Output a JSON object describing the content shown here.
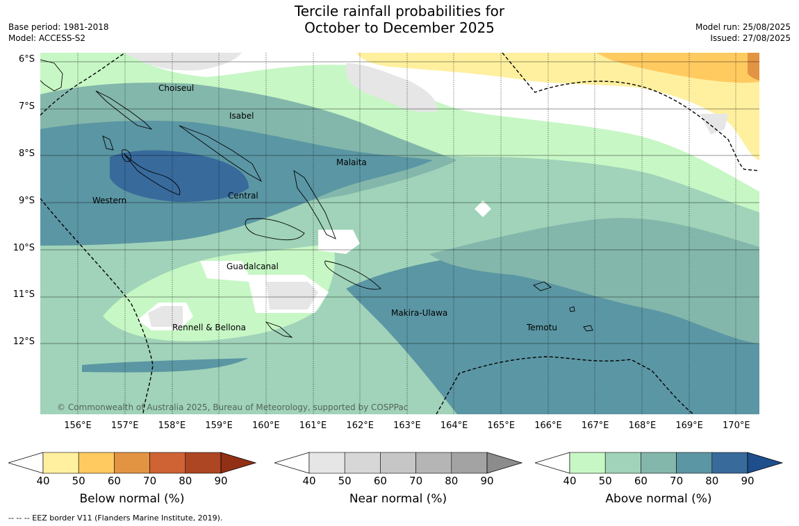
{
  "title_line1": "Tercile rainfall probabilities for",
  "title_line2": "October to December 2025",
  "meta_left": {
    "base_period": "Base period: 1981-2018",
    "model": "Model: ACCESS-S2"
  },
  "meta_right": {
    "model_run": "Model run: 25/08/2025",
    "issued": "Issued: 27/08/2025"
  },
  "lat_labels": [
    "6°S",
    "7°S",
    "8°S",
    "9°S",
    "10°S",
    "11°S",
    "12°S"
  ],
  "lon_labels": [
    "156°E",
    "157°E",
    "158°E",
    "159°E",
    "160°E",
    "161°E",
    "162°E",
    "163°E",
    "164°E",
    "165°E",
    "166°E",
    "167°E",
    "168°E",
    "169°E",
    "170°E"
  ],
  "regions": [
    "Choiseul",
    "Isabel",
    "Malaita",
    "Western",
    "Central",
    "Guadalcanal",
    "Makira-Ulawa",
    "Temotu",
    "Rennell & Bellona"
  ],
  "copyright": "© Commonwealth of Australia 2025, Bureau of Meteorology, supported by COSPPac",
  "colorbars": [
    {
      "name": "below",
      "title": "Below normal (%)",
      "ticks": [
        "40",
        "50",
        "60",
        "70",
        "80",
        "90"
      ],
      "colors": [
        "#fff09f",
        "#ffca60",
        "#e39443",
        "#cf6334",
        "#ad4623",
        "#923015"
      ]
    },
    {
      "name": "near",
      "title": "Near normal (%)",
      "ticks": [
        "40",
        "50",
        "60",
        "70",
        "80",
        "90"
      ],
      "colors": [
        "#e6e6e6",
        "#d7d7d7",
        "#c6c6c6",
        "#b5b5b5",
        "#a3a3a3",
        "#8c8c8c"
      ]
    },
    {
      "name": "above",
      "title": "Above normal (%)",
      "ticks": [
        "40",
        "50",
        "60",
        "70",
        "80",
        "90"
      ],
      "colors": [
        "#c7f7c5",
        "#a0d3b9",
        "#84b7ab",
        "#5b96a4",
        "#386a9c",
        "#1f4e8d"
      ]
    }
  ],
  "footnote": "--  --  -- EEZ border V11 (Flanders Marine Institute, 2019)."
}
